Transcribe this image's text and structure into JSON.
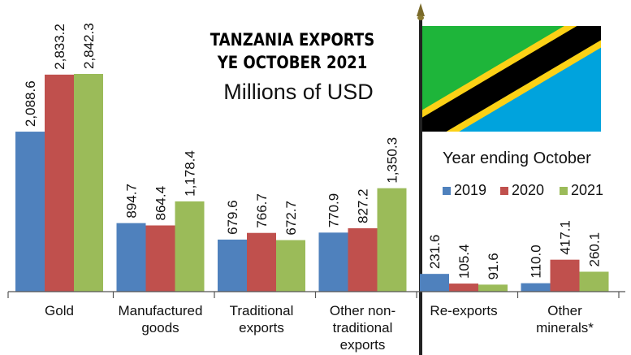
{
  "chart_data": {
    "type": "bar",
    "title": "TANZANIA EXPORTS",
    "title_line2": "YE OCTOBER 2021",
    "subtitle": "Millions of USD",
    "categories": [
      [
        "Gold"
      ],
      [
        "Manufactured",
        "goods"
      ],
      [
        "Traditional",
        "exports"
      ],
      [
        "Other non-",
        "traditional",
        "exports"
      ],
      [
        "Re-exports"
      ],
      [
        "Other",
        "minerals*"
      ]
    ],
    "series": [
      {
        "name": "2019",
        "color": "#4f81bd",
        "values": [
          2088.6,
          894.7,
          679.6,
          770.9,
          231.6,
          110.0
        ],
        "labels": [
          "2,088.6",
          "894.7",
          "679.6",
          "770.9",
          "231.6",
          "110.0"
        ]
      },
      {
        "name": "2020",
        "color": "#c0504d",
        "values": [
          2833.2,
          864.4,
          766.7,
          827.2,
          105.4,
          417.1
        ],
        "labels": [
          "2,833.2",
          "864.4",
          "766.7",
          "827.2",
          "105.4",
          "417.1"
        ]
      },
      {
        "name": "2021",
        "color": "#9bbb59",
        "values": [
          2842.3,
          1178.4,
          672.7,
          1350.3,
          91.6,
          260.1
        ],
        "labels": [
          "2,842.3",
          "1,178.4",
          "672.7",
          "1,350.3",
          "91.6",
          "260.1"
        ]
      }
    ],
    "legend_title": "Year ending October",
    "legend_position": "right",
    "ylim": [
      0,
      2842.3
    ],
    "grid": false,
    "flag": {
      "name": "tanzania-flag-icon",
      "colors": {
        "green": "#1eb53a",
        "yellow": "#fcd116",
        "black": "#000000",
        "blue": "#00a3dd"
      }
    }
  }
}
